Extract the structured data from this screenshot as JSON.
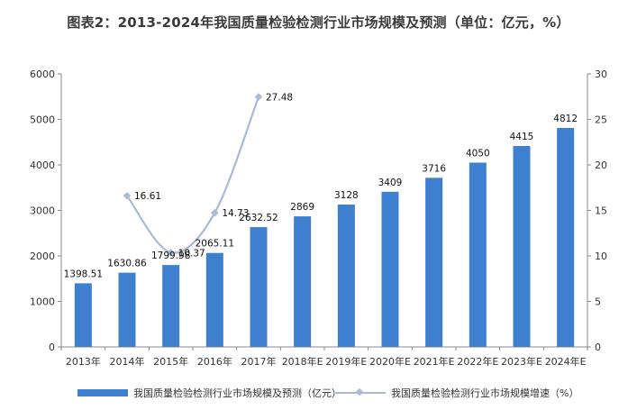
{
  "title": "图表2：2013-2024年我国质量检验检测行业市场规模及预测（单位：亿元，%）",
  "colors": {
    "bar": "#3e7fcf",
    "line": "#a9b9d8",
    "axis": "#8a8a8a"
  },
  "chart_data": {
    "type": "bar",
    "categories": [
      "2013年",
      "2014年",
      "2015年",
      "2016年",
      "2017年",
      "2018年E",
      "2019年E",
      "2020年E",
      "2021年E",
      "2022年E",
      "2023年E",
      "2024年E"
    ],
    "series": [
      {
        "name": "我国质量检验检测行业市场规模及预测（亿元）",
        "type": "bar",
        "axis": "left",
        "values": [
          1398.51,
          1630.86,
          1799.98,
          2065.11,
          2632.52,
          2869,
          3128,
          3409,
          3716,
          4050,
          4415,
          4812
        ],
        "labels": [
          "1398.51",
          "1630.86",
          "1799.98",
          "2065.11",
          "2632.52",
          "2869",
          "3128",
          "3409",
          "3716",
          "4050",
          "4415",
          "4812"
        ]
      },
      {
        "name": "我国质量检验检测行业市场规模增速（%）",
        "type": "line",
        "axis": "right",
        "values": [
          null,
          16.61,
          10.37,
          14.73,
          27.48,
          null,
          null,
          null,
          null,
          null,
          null,
          null
        ],
        "labels": [
          "",
          "16.61",
          "10.37",
          "14.73",
          "27.48",
          "",
          "",
          "",
          "",
          "",
          "",
          ""
        ]
      }
    ],
    "y_left": {
      "ylim": [
        0,
        6000
      ],
      "ticks": [
        "0",
        "1000",
        "2000",
        "3000",
        "4000",
        "5000",
        "6000"
      ]
    },
    "y_right": {
      "ylim": [
        0,
        30
      ],
      "ticks": [
        "0",
        "5",
        "10",
        "15",
        "20",
        "25",
        "30"
      ]
    },
    "grid": false,
    "legend_position": "bottom"
  }
}
